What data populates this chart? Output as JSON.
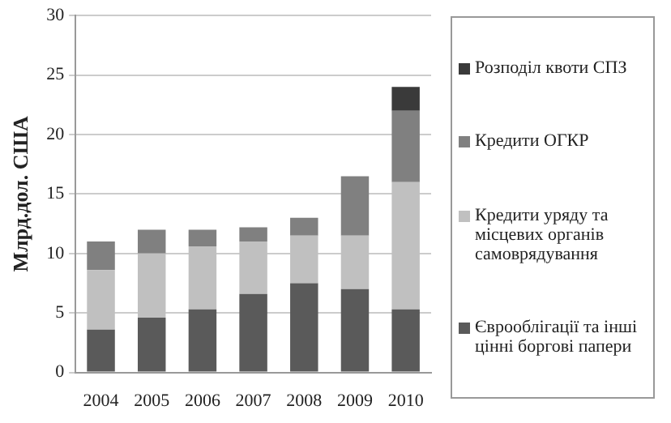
{
  "chart_data": {
    "type": "bar",
    "stacked": true,
    "ylabel": "Млрд.дол. США",
    "categories": [
      "2004",
      "2005",
      "2006",
      "2007",
      "2008",
      "2009",
      "2010"
    ],
    "series": [
      {
        "name": "Єврооблігації та інші цінні боргові папери",
        "color": "#5a5a5a",
        "values": [
          3.6,
          4.6,
          5.3,
          6.6,
          7.5,
          7.0,
          5.3
        ]
      },
      {
        "name": "Кредити уряду та місцевих органів самоврядування",
        "color": "#c0c0c0",
        "values": [
          5.0,
          5.4,
          5.3,
          4.4,
          4.0,
          4.5,
          10.7
        ]
      },
      {
        "name": "Кредити ОГКР",
        "color": "#808080",
        "values": [
          2.4,
          2.0,
          1.4,
          1.2,
          1.5,
          5.0,
          6.0
        ]
      },
      {
        "name": "Розподіл квоти СПЗ",
        "color": "#3a3a3a",
        "values": [
          null,
          null,
          null,
          null,
          null,
          null,
          2.0
        ]
      }
    ],
    "ylim": [
      0,
      30
    ],
    "yticks": [
      0,
      5,
      10,
      15,
      20,
      25,
      30
    ],
    "grid": "y",
    "legend": "right"
  }
}
